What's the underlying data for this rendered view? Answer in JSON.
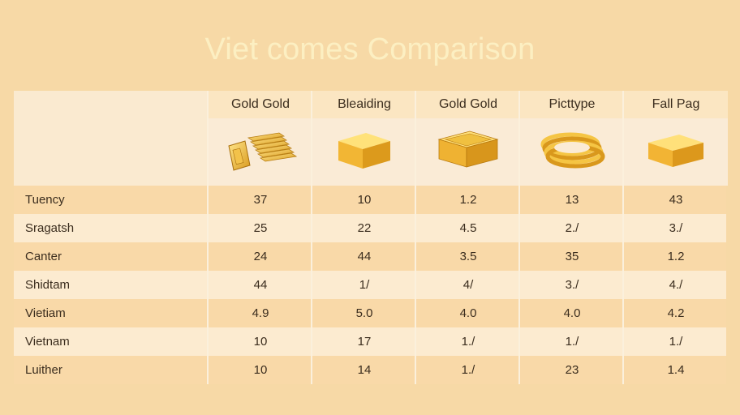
{
  "title": "Viet comes Comparison",
  "chart_data": {
    "type": "table",
    "columns": [
      {
        "label": "Gold Gold",
        "icon": "stacked-gold-bars-icon"
      },
      {
        "label": "Bleaiding",
        "icon": "gold-cube-icon"
      },
      {
        "label": "Gold Gold",
        "icon": "gold-box-icon"
      },
      {
        "label": "Picttype",
        "icon": "gold-coils-icon"
      },
      {
        "label": "Fall Pag",
        "icon": "gold-block-icon"
      }
    ],
    "rows": [
      {
        "label": "Tuency",
        "values": [
          "37",
          "10",
          "1.2",
          "13",
          "43"
        ]
      },
      {
        "label": "Sragatsh",
        "values": [
          "25",
          "22",
          "4.5",
          "2./",
          "3./"
        ]
      },
      {
        "label": "Canter",
        "values": [
          "24",
          "44",
          "3.5",
          "35",
          "1.2"
        ]
      },
      {
        "label": "Shidtam",
        "values": [
          "44",
          "1/",
          "4/",
          "3./",
          "4./"
        ]
      },
      {
        "label": "Vietiam",
        "values": [
          "4.9",
          "5.0",
          "4.0",
          "4.0",
          "4.2"
        ]
      },
      {
        "label": "Vietnam",
        "values": [
          "10",
          "17",
          "1./",
          "1./",
          "1./"
        ]
      },
      {
        "label": "Luither",
        "values": [
          "10",
          "14",
          "1./",
          "23",
          "1.4"
        ]
      }
    ]
  }
}
